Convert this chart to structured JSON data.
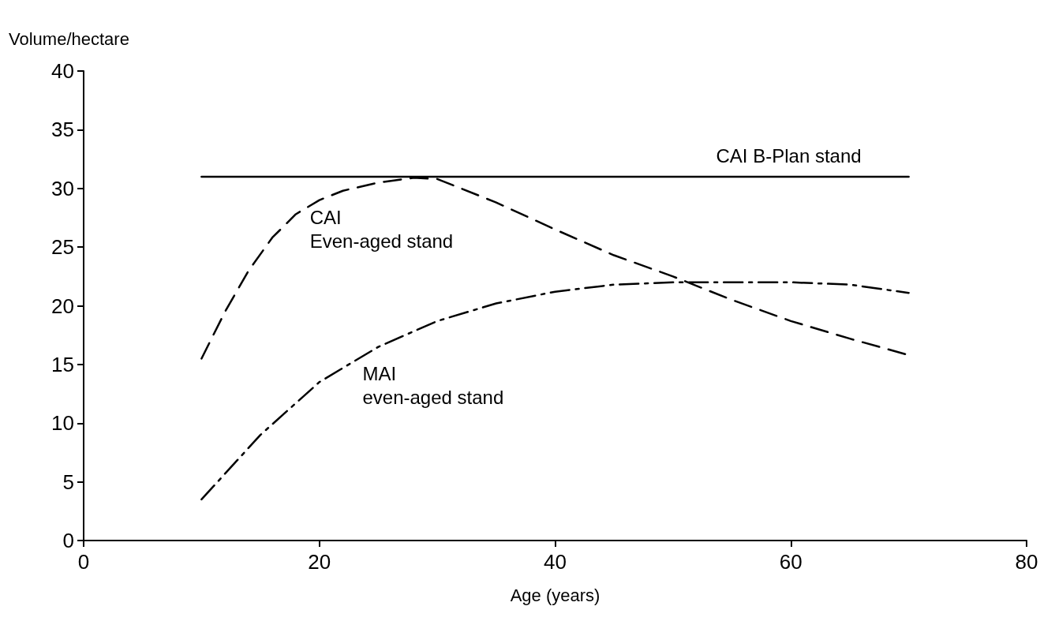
{
  "chart_data": {
    "type": "line",
    "ylabel": "Volume/hectare",
    "xlabel": "Age (years)",
    "xlim": [
      0,
      80
    ],
    "xticks": [
      0,
      20,
      40,
      60,
      80
    ],
    "ylim": [
      0,
      40
    ],
    "yticks": [
      0,
      5,
      10,
      15,
      20,
      25,
      30,
      35,
      40
    ],
    "grid": false,
    "legend": false,
    "marker": "none",
    "series": [
      {
        "name": "CAI B-Plan stand",
        "color": "#000000",
        "line_style": "solid",
        "x": [
          10,
          70
        ],
        "values": [
          31,
          31
        ]
      },
      {
        "name": "CAI Even-aged stand",
        "color": "#000000",
        "line_style": "dashed",
        "x": [
          10,
          12,
          14,
          16,
          18,
          20,
          22,
          25,
          28,
          30,
          35,
          40,
          45,
          50,
          55,
          60,
          65,
          70
        ],
        "values": [
          15.5,
          19.5,
          23,
          25.8,
          27.8,
          29,
          29.8,
          30.5,
          30.9,
          30.8,
          28.8,
          26.5,
          24.3,
          22.5,
          20.5,
          18.7,
          17.2,
          15.8
        ]
      },
      {
        "name": "MAI even-aged stand",
        "color": "#000000",
        "line_style": "dashdot",
        "x": [
          10,
          15,
          20,
          25,
          30,
          35,
          40,
          45,
          50,
          55,
          60,
          65,
          70
        ],
        "values": [
          3.5,
          9,
          13.5,
          16.5,
          18.7,
          20.2,
          21.2,
          21.8,
          22,
          22,
          22,
          21.8,
          21.1
        ]
      }
    ]
  }
}
